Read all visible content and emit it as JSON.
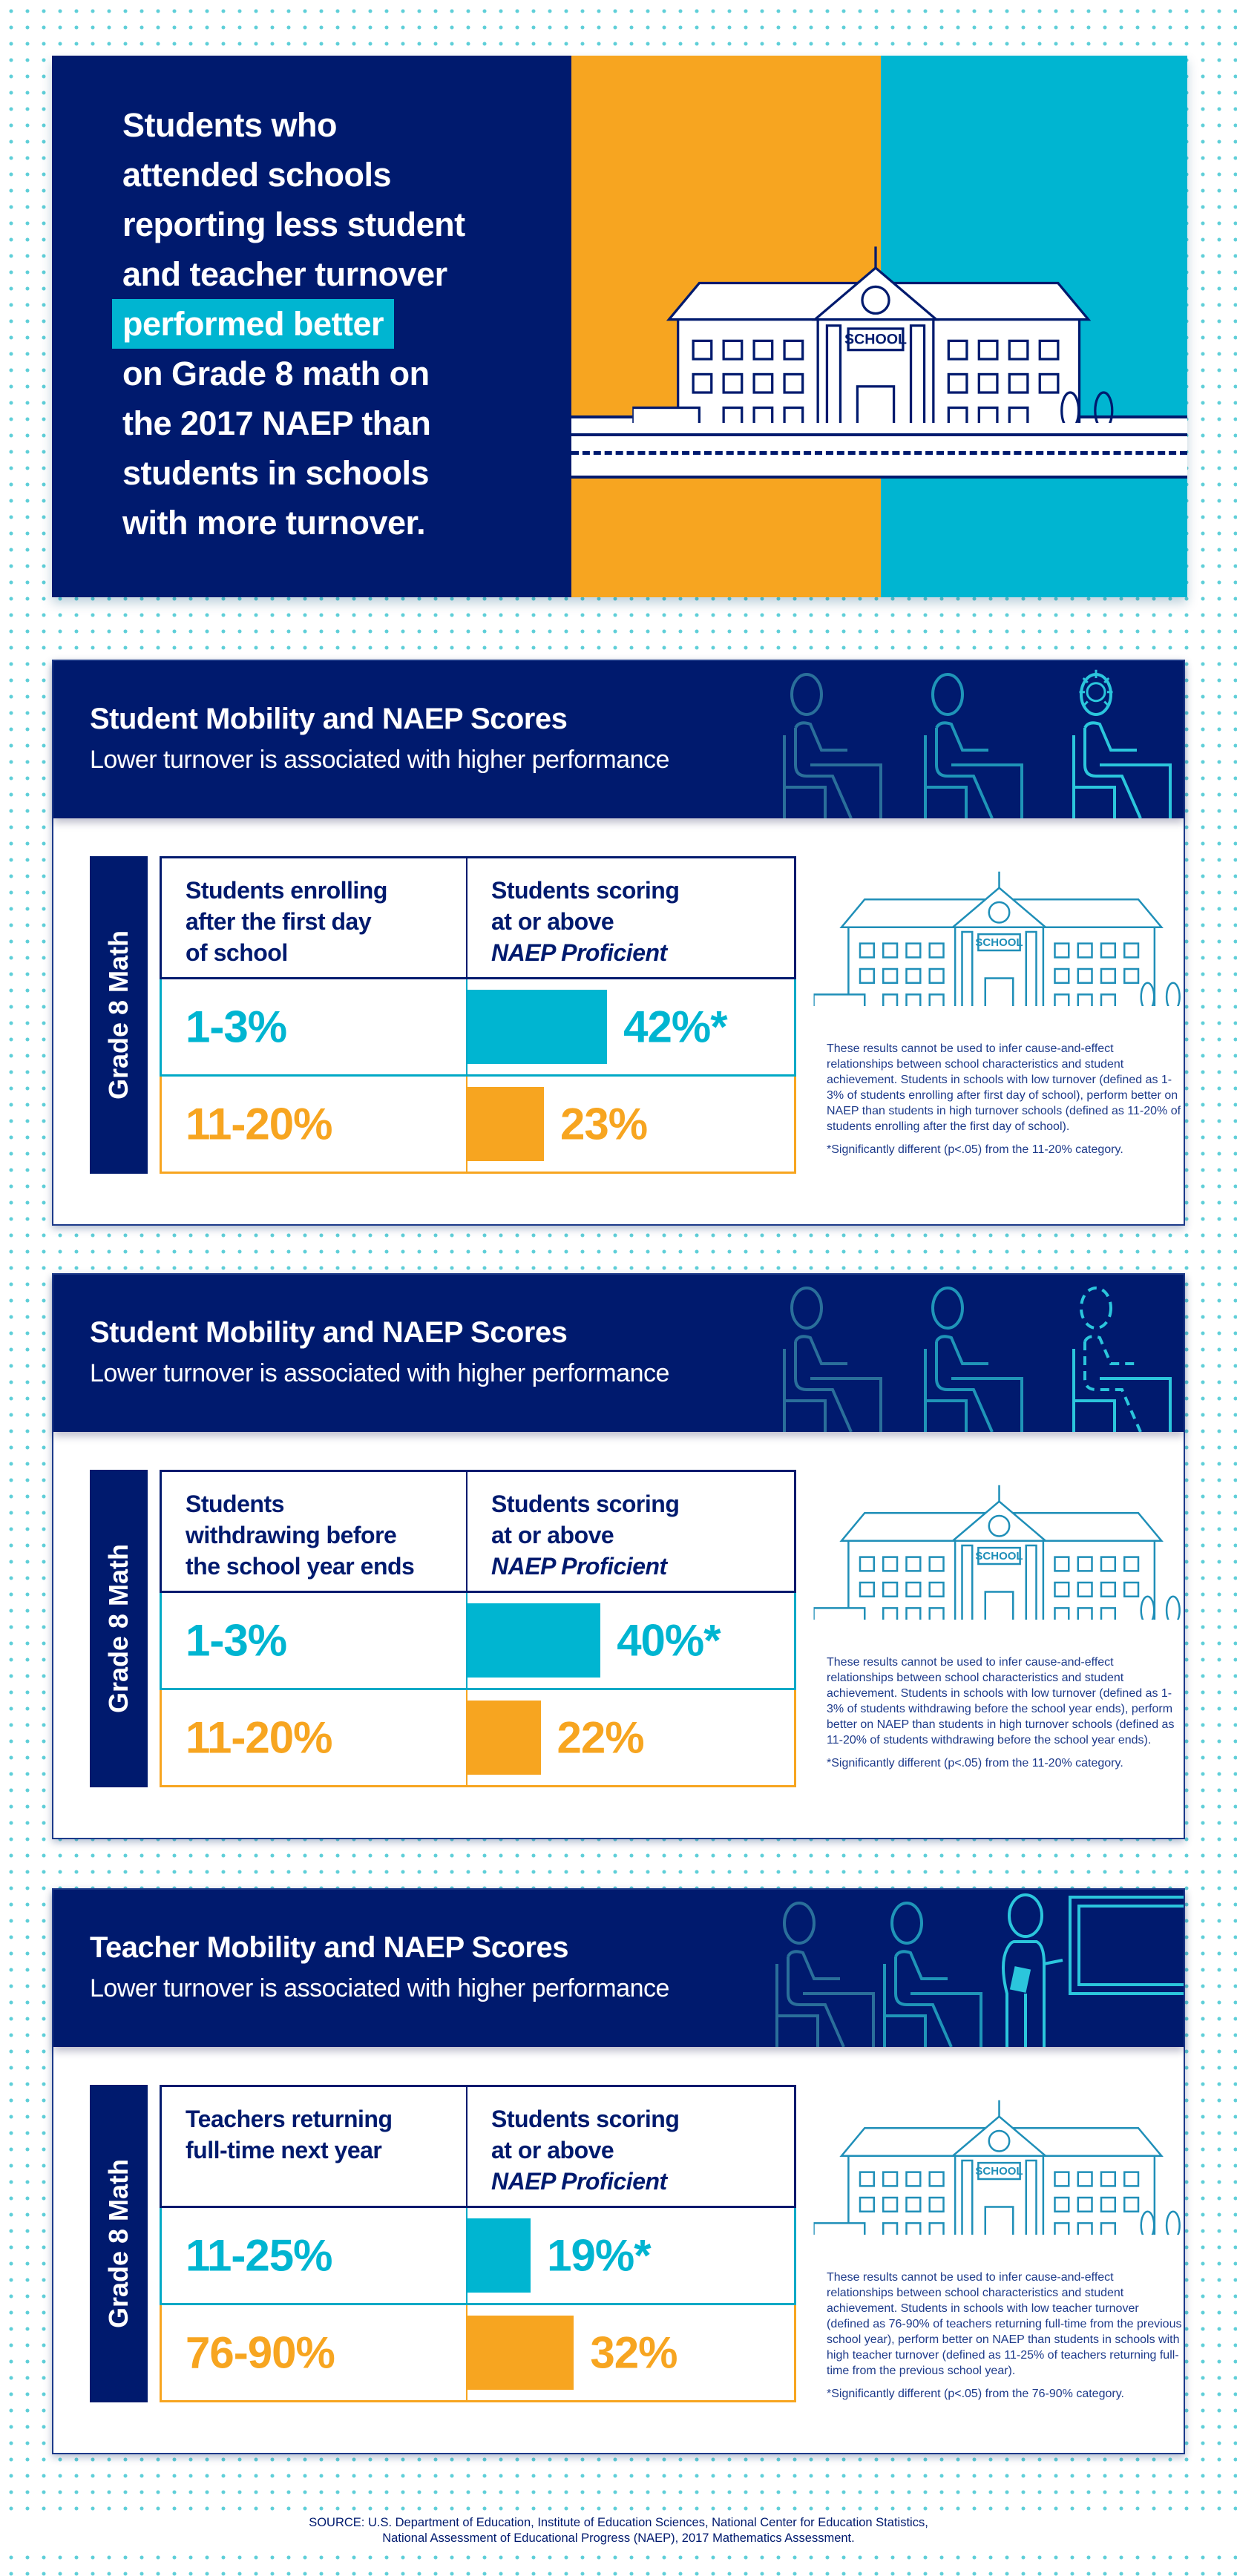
{
  "hero": {
    "lines": [
      "Students who",
      "attended schools",
      "reporting less student",
      "and teacher turnover"
    ],
    "highlight": "performed better",
    "lines_after": [
      "on Grade 8 math on",
      "the 2017 NAEP than",
      "students in schools",
      "with more turnover."
    ],
    "sign": "SCHOOL"
  },
  "colors": {
    "navy": "#001a6e",
    "orange": "#f7a520",
    "cyan": "#00b5d1",
    "note_text": "#1d3a8a"
  },
  "panels": [
    {
      "title": "Student Mobility and NAEP Scores",
      "subtitle": "Lower turnover is associated with higher performance",
      "band": "Grade 8 Math",
      "col1_header": [
        "Students enrolling",
        "after the first day",
        "of school"
      ],
      "col2_header": [
        "Students scoring",
        "at or above"
      ],
      "col2_header_italic": "NAEP Proficient",
      "rows": [
        {
          "range": "1-3%",
          "value": 42,
          "label": "42%*",
          "color": "cyan"
        },
        {
          "range": "11-20%",
          "value": 23,
          "label": "23%",
          "color": "orange"
        }
      ],
      "note": "These results cannot be used to infer cause-and-effect relationships between school characteristics and student achievement. Students in schools with low turnover (defined as 1-3% of students enrolling after first day of school), perform better on NAEP than students in high turnover schools (defined as 11-20% of students enrolling after the first day of school).",
      "footnote": "*Significantly different (p<.05) from the 11-20% category.",
      "icons": [
        "seated-student",
        "seated-student",
        "seated-student-sun"
      ],
      "sign": "SCHOOL"
    },
    {
      "title": "Student Mobility and NAEP Scores",
      "subtitle": "Lower turnover is associated with higher performance",
      "band": "Grade 8 Math",
      "col1_header": [
        "Students",
        "withdrawing before",
        "the school year ends"
      ],
      "col2_header": [
        "Students scoring",
        "at or above"
      ],
      "col2_header_italic": "NAEP Proficient",
      "rows": [
        {
          "range": "1-3%",
          "value": 40,
          "label": "40%*",
          "color": "cyan"
        },
        {
          "range": "11-20%",
          "value": 22,
          "label": "22%",
          "color": "orange"
        }
      ],
      "note": "These results cannot be used to infer cause-and-effect relationships between school characteristics and student achievement. Students in schools with low turnover (defined as 1-3% of students withdrawing before the school year ends), perform better on NAEP than students in high turnover schools (defined as 11-20% of students withdrawing before the school year ends).",
      "footnote": "*Significantly different (p<.05) from the 11-20% category.",
      "icons": [
        "seated-student",
        "seated-student",
        "seated-student-dashed"
      ],
      "sign": "SCHOOL"
    },
    {
      "title": "Teacher Mobility and NAEP Scores",
      "subtitle": "Lower turnover is associated with higher performance",
      "band": "Grade 8 Math",
      "col1_header": [
        "Teachers returning",
        "full-time next year"
      ],
      "col2_header": [
        "Students scoring",
        "at or above"
      ],
      "col2_header_italic": "NAEP Proficient",
      "rows": [
        {
          "range": "11-25%",
          "value": 19,
          "label": "19%*",
          "color": "cyan"
        },
        {
          "range": "76-90%",
          "value": 32,
          "label": "32%",
          "color": "orange"
        }
      ],
      "note": "These results cannot be used to infer cause-and-effect relationships between school characteristics and student achievement. Students in schools with low teacher turnover (defined as 76-90% of teachers returning full-time from the previous school year), perform better on NAEP than students in schools with high teacher turnover (defined as 11-25% of teachers returning full-time from the previous school year).",
      "footnote": "*Significantly different (p<.05) from the 76-90% category.",
      "icons": [
        "seated-student",
        "seated-student",
        "teacher",
        "chalkboard"
      ],
      "sign": "SCHOOL"
    }
  ],
  "source": [
    "SOURCE: U.S. Department of Education, Institute of Education Sciences, National Center for Education Statistics,",
    "National Assessment of Educational Progress (NAEP), 2017 Mathematics Assessment."
  ]
}
